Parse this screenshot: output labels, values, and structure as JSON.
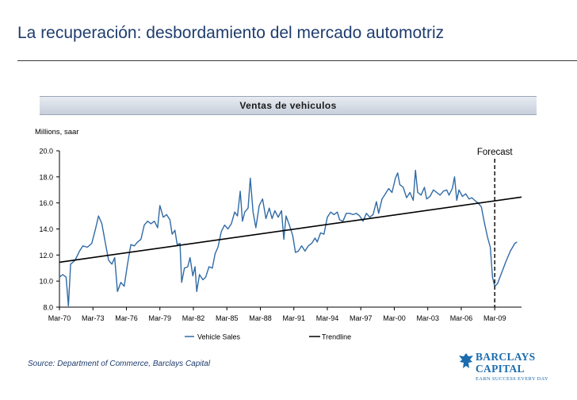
{
  "page": {
    "title": "La recuperación: desbordamiento del mercado automotriz",
    "source": "Source: Department of Commerce, Barclays Capital"
  },
  "brand": {
    "name_line1": "BARCLAYS",
    "name_line2": "CAPITAL",
    "tagline": "EARN SUCCESS EVERY DAY",
    "color": "#1b6cae"
  },
  "chart_data": {
    "type": "line",
    "title": "Ventas de vehiculos",
    "ylabel": "Millions, saar",
    "xlabel": "",
    "ylim": [
      8.0,
      20.0
    ],
    "yticks": [
      "8.0",
      "10.0",
      "12.0",
      "14.0",
      "16.0",
      "18.0",
      "20.0"
    ],
    "xlim": [
      1970.0,
      2011.4
    ],
    "xticks": [
      {
        "x": 1970,
        "label": "Mar-70"
      },
      {
        "x": 1973,
        "label": "Mar-73"
      },
      {
        "x": 1976,
        "label": "Mar-76"
      },
      {
        "x": 1979,
        "label": "Mar-79"
      },
      {
        "x": 1982,
        "label": "Mar-82"
      },
      {
        "x": 1985,
        "label": "Mar-85"
      },
      {
        "x": 1988,
        "label": "Mar-88"
      },
      {
        "x": 1991,
        "label": "Mar-91"
      },
      {
        "x": 1994,
        "label": "Mar-94"
      },
      {
        "x": 1997,
        "label": "Mar-97"
      },
      {
        "x": 2000,
        "label": "Mar-00"
      },
      {
        "x": 2003,
        "label": "Mar-03"
      },
      {
        "x": 2006,
        "label": "Mar-06"
      },
      {
        "x": 2009,
        "label": "Mar-09"
      }
    ],
    "series": [
      {
        "name": "Vehicle Sales",
        "color": "#2f6aa6",
        "points": [
          [
            1970.0,
            10.3
          ],
          [
            1970.3,
            10.5
          ],
          [
            1970.6,
            10.3
          ],
          [
            1970.8,
            8.1
          ],
          [
            1971.0,
            11.3
          ],
          [
            1971.4,
            11.6
          ],
          [
            1971.8,
            12.3
          ],
          [
            1972.1,
            12.7
          ],
          [
            1972.5,
            12.6
          ],
          [
            1972.9,
            12.9
          ],
          [
            1973.2,
            13.9
          ],
          [
            1973.5,
            15.0
          ],
          [
            1973.8,
            14.4
          ],
          [
            1974.1,
            13.0
          ],
          [
            1974.4,
            11.6
          ],
          [
            1974.7,
            11.3
          ],
          [
            1974.95,
            11.8
          ],
          [
            1975.2,
            9.2
          ],
          [
            1975.5,
            9.9
          ],
          [
            1975.8,
            9.6
          ],
          [
            1976.1,
            11.3
          ],
          [
            1976.4,
            12.8
          ],
          [
            1976.7,
            12.7
          ],
          [
            1977.0,
            13.0
          ],
          [
            1977.3,
            13.2
          ],
          [
            1977.6,
            14.3
          ],
          [
            1977.9,
            14.6
          ],
          [
            1978.2,
            14.4
          ],
          [
            1978.5,
            14.6
          ],
          [
            1978.8,
            14.1
          ],
          [
            1979.0,
            15.8
          ],
          [
            1979.3,
            14.9
          ],
          [
            1979.6,
            15.1
          ],
          [
            1979.9,
            14.7
          ],
          [
            1980.1,
            13.6
          ],
          [
            1980.35,
            13.9
          ],
          [
            1980.55,
            12.8
          ],
          [
            1980.8,
            12.9
          ],
          [
            1980.95,
            9.9
          ],
          [
            1981.2,
            11.0
          ],
          [
            1981.5,
            11.1
          ],
          [
            1981.7,
            11.8
          ],
          [
            1981.95,
            10.4
          ],
          [
            1982.15,
            11.1
          ],
          [
            1982.3,
            9.2
          ],
          [
            1982.55,
            10.5
          ],
          [
            1982.85,
            10.1
          ],
          [
            1983.1,
            10.3
          ],
          [
            1983.4,
            11.1
          ],
          [
            1983.7,
            11.0
          ],
          [
            1983.95,
            12.1
          ],
          [
            1984.2,
            12.6
          ],
          [
            1984.5,
            13.8
          ],
          [
            1984.8,
            14.3
          ],
          [
            1985.1,
            14.0
          ],
          [
            1985.4,
            14.4
          ],
          [
            1985.7,
            15.3
          ],
          [
            1985.95,
            15.0
          ],
          [
            1986.2,
            16.9
          ],
          [
            1986.4,
            14.6
          ],
          [
            1986.6,
            15.3
          ],
          [
            1986.9,
            15.6
          ],
          [
            1987.1,
            17.9
          ],
          [
            1987.35,
            15.3
          ],
          [
            1987.6,
            14.1
          ],
          [
            1987.9,
            15.8
          ],
          [
            1988.2,
            16.3
          ],
          [
            1988.5,
            14.8
          ],
          [
            1988.8,
            15.6
          ],
          [
            1989.05,
            14.8
          ],
          [
            1989.3,
            15.4
          ],
          [
            1989.6,
            14.9
          ],
          [
            1989.9,
            15.4
          ],
          [
            1990.1,
            13.2
          ],
          [
            1990.3,
            15.0
          ],
          [
            1990.6,
            14.3
          ],
          [
            1990.9,
            13.5
          ],
          [
            1991.15,
            12.2
          ],
          [
            1991.4,
            12.3
          ],
          [
            1991.7,
            12.7
          ],
          [
            1992.0,
            12.3
          ],
          [
            1992.3,
            12.7
          ],
          [
            1992.6,
            12.9
          ],
          [
            1992.9,
            13.3
          ],
          [
            1993.1,
            13.0
          ],
          [
            1993.4,
            13.7
          ],
          [
            1993.7,
            13.6
          ],
          [
            1994.0,
            14.9
          ],
          [
            1994.3,
            15.3
          ],
          [
            1994.6,
            15.1
          ],
          [
            1994.9,
            15.3
          ],
          [
            1995.1,
            14.7
          ],
          [
            1995.4,
            14.6
          ],
          [
            1995.7,
            15.2
          ],
          [
            1996.0,
            15.2
          ],
          [
            1996.3,
            15.1
          ],
          [
            1996.6,
            15.2
          ],
          [
            1996.9,
            15.0
          ],
          [
            1997.2,
            14.6
          ],
          [
            1997.5,
            15.2
          ],
          [
            1997.8,
            14.9
          ],
          [
            1998.1,
            15.1
          ],
          [
            1998.4,
            16.1
          ],
          [
            1998.6,
            15.2
          ],
          [
            1998.9,
            16.3
          ],
          [
            1999.2,
            16.7
          ],
          [
            1999.5,
            17.1
          ],
          [
            1999.8,
            16.8
          ],
          [
            2000.1,
            17.9
          ],
          [
            2000.3,
            18.3
          ],
          [
            2000.5,
            17.4
          ],
          [
            2000.8,
            17.2
          ],
          [
            2001.1,
            16.4
          ],
          [
            2001.4,
            16.8
          ],
          [
            2001.7,
            16.2
          ],
          [
            2001.9,
            18.5
          ],
          [
            2002.1,
            16.8
          ],
          [
            2002.4,
            16.6
          ],
          [
            2002.7,
            17.2
          ],
          [
            2002.9,
            16.3
          ],
          [
            2003.2,
            16.5
          ],
          [
            2003.5,
            17.0
          ],
          [
            2003.8,
            16.8
          ],
          [
            2004.1,
            16.6
          ],
          [
            2004.4,
            16.9
          ],
          [
            2004.7,
            17.0
          ],
          [
            2004.9,
            16.6
          ],
          [
            2005.2,
            17.1
          ],
          [
            2005.4,
            18.0
          ],
          [
            2005.6,
            16.2
          ],
          [
            2005.8,
            17.0
          ],
          [
            2006.1,
            16.5
          ],
          [
            2006.4,
            16.7
          ],
          [
            2006.7,
            16.3
          ],
          [
            2006.95,
            16.4
          ],
          [
            2007.2,
            16.2
          ],
          [
            2007.5,
            16.0
          ],
          [
            2007.8,
            15.7
          ],
          [
            2008.05,
            14.6
          ],
          [
            2008.35,
            13.4
          ],
          [
            2008.6,
            12.6
          ],
          [
            2008.8,
            10.3
          ],
          [
            2009.0,
            9.6
          ],
          [
            2009.25,
            9.8
          ],
          [
            2009.6,
            10.6
          ],
          [
            2010.0,
            11.5
          ],
          [
            2010.4,
            12.3
          ],
          [
            2010.8,
            12.9
          ],
          [
            2011.0,
            13.0
          ]
        ]
      },
      {
        "name": "Trendline",
        "color": "#000000",
        "points": [
          [
            1970.0,
            11.45
          ],
          [
            2011.4,
            16.45
          ]
        ]
      }
    ],
    "annotations": [
      {
        "text": "Forecast",
        "x": 2009.0,
        "style": "dashed-vertical"
      }
    ],
    "legend": {
      "position": "bottom-center"
    },
    "grid": false
  }
}
